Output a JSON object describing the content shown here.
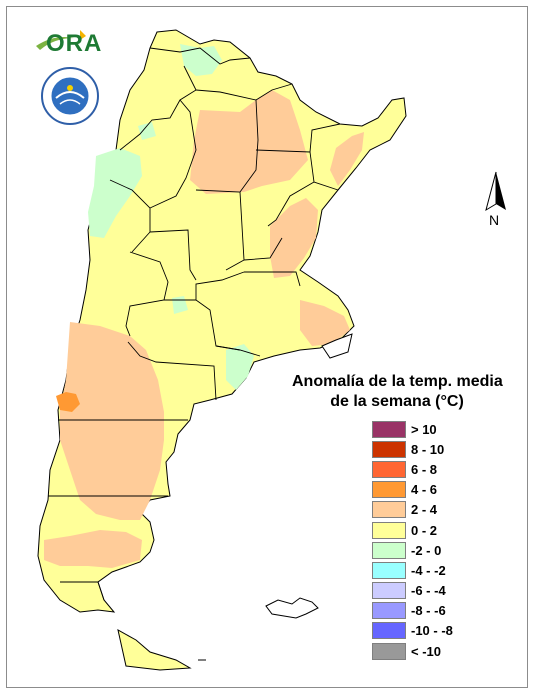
{
  "legend": {
    "title_line1": "Anomalía de la temp. media",
    "title_line2": "de la semana (°C)",
    "items": [
      {
        "label": "> 10",
        "color": "#993366"
      },
      {
        "label": "8 - 10",
        "color": "#cc3300"
      },
      {
        "label": "6 - 8",
        "color": "#ff6633"
      },
      {
        "label": "4 - 6",
        "color": "#ff9933"
      },
      {
        "label": "2 - 4",
        "color": "#ffcc99"
      },
      {
        "label": "0 - 2",
        "color": "#ffff99"
      },
      {
        "label": "-2 - 0",
        "color": "#ccffcc"
      },
      {
        "label": "-4 - -2",
        "color": "#99ffff"
      },
      {
        "label": "-6 - -4",
        "color": "#ccccff"
      },
      {
        "label": "-8 - -6",
        "color": "#9999ff"
      },
      {
        "label": "-10 - -8",
        "color": "#6666ff"
      },
      {
        "label": "< -10",
        "color": "#999999"
      }
    ]
  },
  "logos": {
    "ora": "ORA"
  },
  "north_arrow": {
    "label": "N"
  },
  "map": {
    "base_color": "#ffff99",
    "warm_color": "#ffcc99",
    "hot_color": "#ff9933",
    "cool_color": "#ccffcc",
    "border_color": "#000000"
  }
}
